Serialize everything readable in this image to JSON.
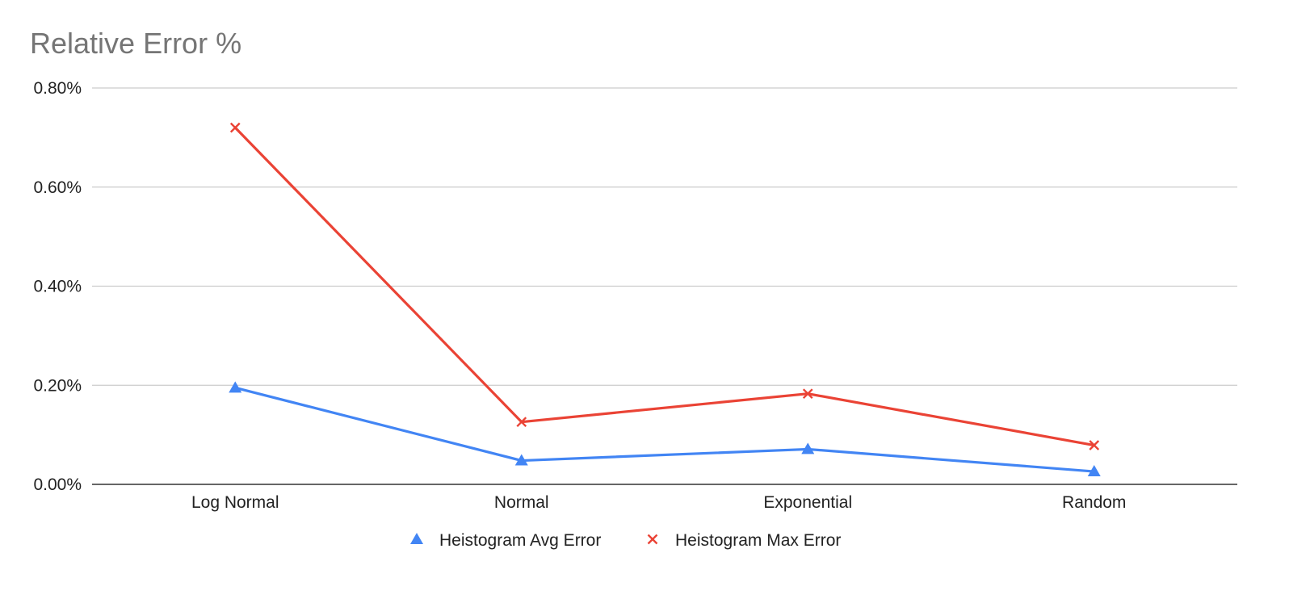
{
  "chart_data": {
    "type": "line",
    "title": "Relative Error %",
    "xlabel": "",
    "ylabel": "",
    "categories": [
      "Log Normal",
      "Normal",
      "Exponential",
      "Random"
    ],
    "y_ticks": [
      0,
      0.2,
      0.4,
      0.6,
      0.8
    ],
    "y_tick_labels": [
      "0.00%",
      "0.20%",
      "0.40%",
      "0.60%",
      "0.80%"
    ],
    "ylim": [
      0,
      0.8
    ],
    "grid": true,
    "legend_position": "bottom-center",
    "series": [
      {
        "name": "Heistogram Avg Error",
        "marker": "triangle",
        "color": "#4285F4",
        "values": [
          0.195,
          0.048,
          0.071,
          0.026
        ]
      },
      {
        "name": "Heistogram Max Error",
        "marker": "x",
        "color": "#EA4335",
        "values": [
          0.72,
          0.126,
          0.183,
          0.079
        ]
      }
    ]
  }
}
